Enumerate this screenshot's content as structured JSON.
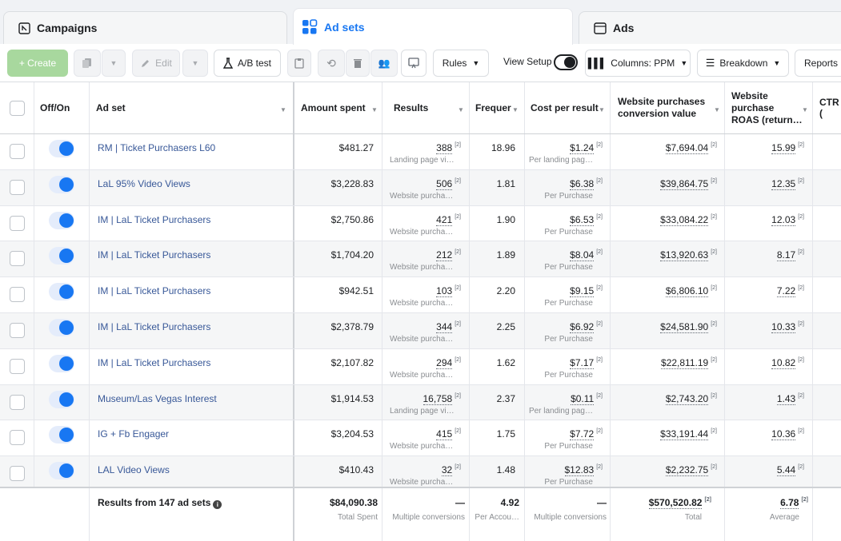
{
  "tabs": [
    {
      "label": "Campaigns",
      "icon": "campaigns-icon"
    },
    {
      "label": "Ad sets",
      "icon": "adsets-grid-icon"
    },
    {
      "label": "Ads",
      "icon": "ads-icon"
    }
  ],
  "toolbar": {
    "create_label": "+ Create",
    "edit_label": "Edit",
    "ab_test_label": "A/B test",
    "rules_label": "Rules",
    "view_setup_label": "View Setup",
    "columns_label": "Columns: PPM",
    "breakdown_label": "Breakdown",
    "reports_label": "Reports"
  },
  "table": {
    "headers": {
      "offon": "Off/On",
      "adset": "Ad set",
      "amount": "Amount spent",
      "results": "Results",
      "frequency": "Frequer",
      "cpr": "Cost per result",
      "wpcv_line1": "Website purchases",
      "wpcv_line2": "conversion value",
      "roas_line1": "Website",
      "roas_line2": "purchase",
      "roas_line3": "ROAS (return…",
      "ctr": "CTR ("
    },
    "rows": [
      {
        "name": "RM | Ticket Purchasers L60",
        "amount": "$481.27",
        "results": "388",
        "results_sub": "Landing page vi…",
        "freq": "18.96",
        "cpr": "$1.24",
        "cpr_sub": "Per landing pag…",
        "wpcv": "$7,694.04",
        "roas": "15.99"
      },
      {
        "name": "LaL 95% Video Views",
        "amount": "$3,228.83",
        "results": "506",
        "results_sub": "Website purcha…",
        "freq": "1.81",
        "cpr": "$6.38",
        "cpr_sub": "Per Purchase",
        "wpcv": "$39,864.75",
        "roas": "12.35"
      },
      {
        "name": "IM | LaL Ticket Purchasers",
        "amount": "$2,750.86",
        "results": "421",
        "results_sub": "Website purcha…",
        "freq": "1.90",
        "cpr": "$6.53",
        "cpr_sub": "Per Purchase",
        "wpcv": "$33,084.22",
        "roas": "12.03"
      },
      {
        "name": "IM | LaL Ticket Purchasers",
        "amount": "$1,704.20",
        "results": "212",
        "results_sub": "Website purcha…",
        "freq": "1.89",
        "cpr": "$8.04",
        "cpr_sub": "Per Purchase",
        "wpcv": "$13,920.63",
        "roas": "8.17"
      },
      {
        "name": "IM | LaL Ticket Purchasers",
        "amount": "$942.51",
        "results": "103",
        "results_sub": "Website purcha…",
        "freq": "2.20",
        "cpr": "$9.15",
        "cpr_sub": "Per Purchase",
        "wpcv": "$6,806.10",
        "roas": "7.22"
      },
      {
        "name": "IM | LaL Ticket Purchasers",
        "amount": "$2,378.79",
        "results": "344",
        "results_sub": "Website purcha…",
        "freq": "2.25",
        "cpr": "$6.92",
        "cpr_sub": "Per Purchase",
        "wpcv": "$24,581.90",
        "roas": "10.33"
      },
      {
        "name": "IM | LaL Ticket Purchasers",
        "amount": "$2,107.82",
        "results": "294",
        "results_sub": "Website purcha…",
        "freq": "1.62",
        "cpr": "$7.17",
        "cpr_sub": "Per Purchase",
        "wpcv": "$22,811.19",
        "roas": "10.82"
      },
      {
        "name": "Museum/Las Vegas Interest",
        "amount": "$1,914.53",
        "results": "16,758",
        "results_sub": "Landing page vi…",
        "freq": "2.37",
        "cpr": "$0.11",
        "cpr_sub": "Per landing pag…",
        "wpcv": "$2,743.20",
        "roas": "1.43"
      },
      {
        "name": "IG + Fb Engager",
        "amount": "$3,204.53",
        "results": "415",
        "results_sub": "Website purcha…",
        "freq": "1.75",
        "cpr": "$7.72",
        "cpr_sub": "Per Purchase",
        "wpcv": "$33,191.44",
        "roas": "10.36"
      },
      {
        "name": "LAL Video Views",
        "amount": "$410.43",
        "results": "32",
        "results_sub": "Website purcha…",
        "freq": "1.48",
        "cpr": "$12.83",
        "cpr_sub": "Per Purchase",
        "wpcv": "$2,232.75",
        "roas": "5.44"
      }
    ],
    "ref_mark": "[2]",
    "summary": {
      "label": "Results from 147 ad sets",
      "amount": "$84,090.38",
      "amount_sub": "Total Spent",
      "results": "—",
      "results_sub": "Multiple conversions",
      "freq": "4.92",
      "freq_sub": "Per Accou…",
      "cpr": "—",
      "cpr_sub": "Multiple conversions",
      "wpcv": "$570,520.82",
      "wpcv_sub": "Total",
      "roas": "6.78",
      "roas_sub": "Average"
    }
  },
  "colors": {
    "accent": "#1877f2",
    "link": "#385898",
    "create_green": "#a8d89e"
  }
}
